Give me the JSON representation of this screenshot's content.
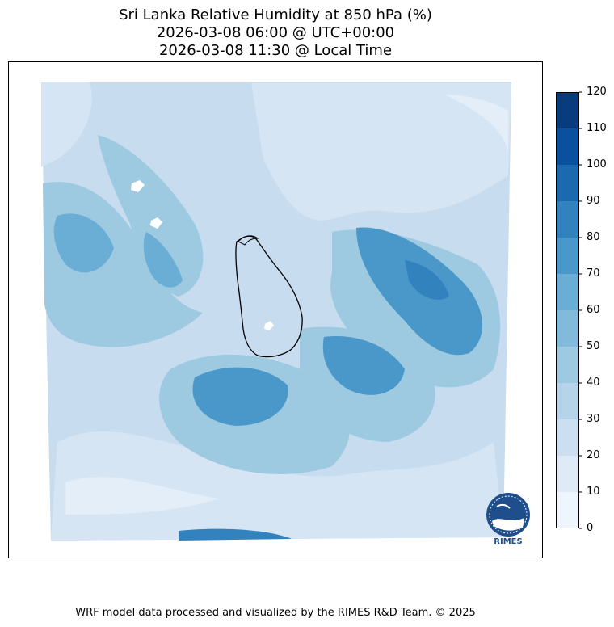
{
  "title": {
    "line1": "Sri Lanka Relative Humidity at 850 hPa (%)",
    "line2": "2026-03-08 06:00 @ UTC+00:00",
    "line3": "2026-03-08 11:30 @ Local Time"
  },
  "colorbar": {
    "ticks": [
      "0",
      "10",
      "20",
      "30",
      "40",
      "50",
      "60",
      "70",
      "80",
      "90",
      "100",
      "110",
      "120"
    ],
    "colors": [
      "#eff5fc",
      "#deebf7",
      "#ccdff1",
      "#b6d4e9",
      "#9ecae1",
      "#82badb",
      "#6aaed6",
      "#4a98c9",
      "#3282be",
      "#1b6aaf",
      "#0b509c",
      "#083c7d"
    ]
  },
  "logo": {
    "text": "RIMES",
    "name": "rimes-logo"
  },
  "credit": "WRF model data processed and visualized by the RIMES R&D Team. © 2025"
}
